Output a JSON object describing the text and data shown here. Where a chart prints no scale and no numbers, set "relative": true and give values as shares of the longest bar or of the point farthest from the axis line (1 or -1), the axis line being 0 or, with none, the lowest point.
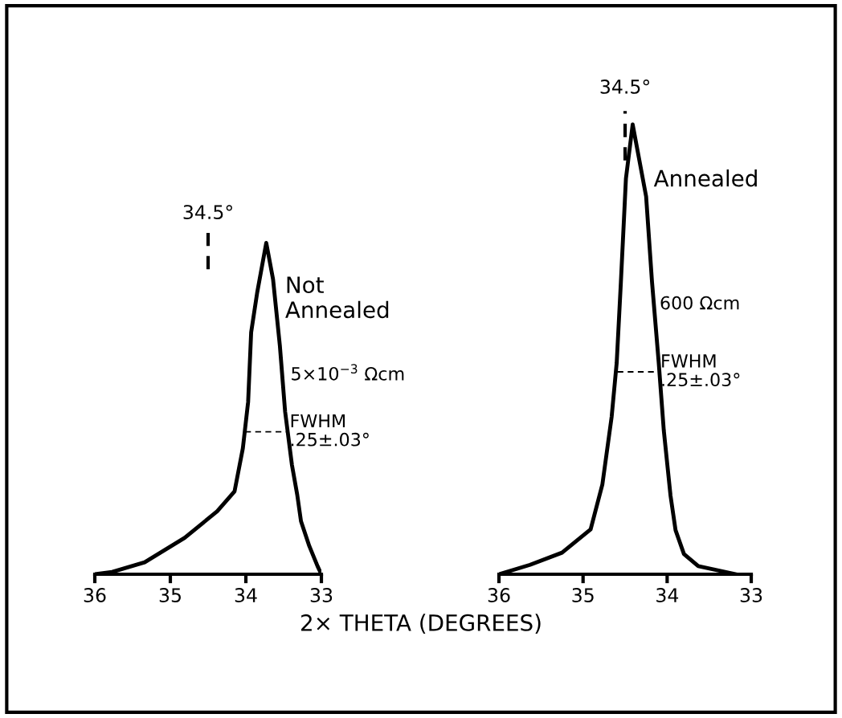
{
  "chart_data": [
    {
      "type": "line",
      "relative": true,
      "xlabel": "2× THETA (DEGREES)",
      "xlim": [
        36,
        33
      ],
      "xticks": [
        36,
        35,
        34,
        33
      ],
      "tick_labels": "x",
      "grid": false,
      "marker": "none",
      "series": [
        {
          "name": "Not\nAnnealed",
          "color": "#000000",
          "x": [
            36.0,
            35.77,
            35.34,
            34.81,
            34.38,
            34.15,
            34.04,
            33.97,
            33.93,
            33.85,
            33.73,
            33.64,
            33.55,
            33.48,
            33.39,
            33.32,
            33.27,
            33.16,
            33.05,
            33.0
          ],
          "values": [
            0,
            0.007,
            0.036,
            0.11,
            0.19,
            0.25,
            0.38,
            0.52,
            0.73,
            0.85,
            1.0,
            0.89,
            0.69,
            0.49,
            0.33,
            0.24,
            0.16,
            0.085,
            0.024,
            0
          ]
        },
        {
          "color": "#000000",
          "line_style": "dashed",
          "x": [
            34.01,
            33.46
          ],
          "values": [
            0.43,
            0.43
          ]
        }
      ],
      "ref_lines": [
        {
          "axis": "x",
          "value": 34.5,
          "label": "34.5°",
          "line_style": "dashed",
          "color": "#000000"
        }
      ],
      "annotations": [
        {
          "text": "FWHM\n.25±.03°",
          "x": 33.46,
          "y": 0.43
        },
        "5×10$^{−3}$ Ωcm"
      ]
    },
    {
      "type": "line",
      "relative": true,
      "xlim": [
        36,
        33
      ],
      "xticks": [
        36,
        35,
        34,
        33
      ],
      "tick_labels": "x",
      "grid": false,
      "marker": "none",
      "series": [
        {
          "name": "Annealed",
          "color": "#000000",
          "x": [
            36.0,
            35.63,
            35.25,
            34.91,
            34.77,
            34.66,
            34.6,
            34.55,
            34.49,
            34.41,
            34.25,
            34.18,
            34.1,
            34.04,
            33.96,
            33.9,
            33.8,
            33.63,
            33.18
          ],
          "values": [
            0,
            0.021,
            0.048,
            0.1,
            0.2,
            0.35,
            0.47,
            0.65,
            0.88,
            1.0,
            0.84,
            0.65,
            0.47,
            0.32,
            0.175,
            0.098,
            0.045,
            0.018,
            0
          ]
        },
        {
          "color": "#000000",
          "line_style": "dashed",
          "x": [
            34.59,
            34.12
          ],
          "values": [
            0.45,
            0.45
          ]
        }
      ],
      "ref_lines": [
        {
          "axis": "x",
          "value": 34.5,
          "label": "34.5°",
          "line_style": "dashed",
          "color": "#000000"
        }
      ],
      "annotations": [
        {
          "text": "FWHM\n.25±.03°",
          "x": 34.12,
          "y": 0.45
        },
        "600 Ωcm"
      ]
    }
  ]
}
